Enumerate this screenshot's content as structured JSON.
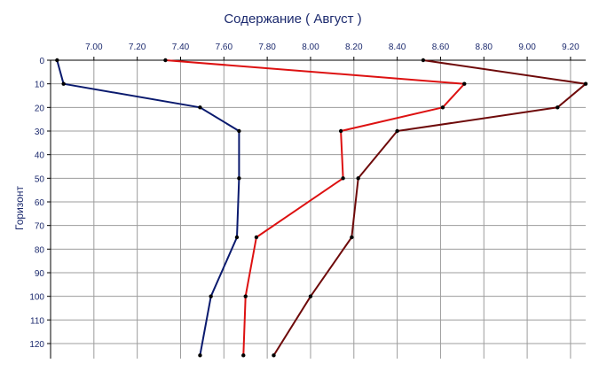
{
  "chart_data": {
    "type": "line",
    "title": "Содержание    ( Август )",
    "xlabel": "",
    "ylabel": "Горизонт",
    "xlim": [
      6.8,
      9.27
    ],
    "ylim": [
      0,
      125
    ],
    "y_inverted": true,
    "x_axis_position": "top",
    "grid": true,
    "x_ticks": [
      7.0,
      7.2,
      7.4,
      7.6,
      7.8,
      8.0,
      8.2,
      8.4,
      8.6,
      8.8,
      9.0,
      9.2
    ],
    "x_tick_labels": [
      "7.00",
      "7.20",
      "7.40",
      "7.60",
      "7.80",
      "8.00",
      "8.20",
      "8.40",
      "8.60",
      "8.80",
      "9.00",
      "9.20"
    ],
    "y_ticks": [
      0,
      10,
      20,
      30,
      40,
      50,
      60,
      70,
      80,
      90,
      100,
      110,
      120
    ],
    "y_tick_labels": [
      "0",
      "10",
      "20",
      "30",
      "40",
      "50",
      "60",
      "70",
      "80",
      "90",
      "100",
      "110",
      "120"
    ],
    "series": [
      {
        "color": "#0a1a6e",
        "points": [
          [
            6.83,
            0
          ],
          [
            6.86,
            10
          ],
          [
            7.49,
            20
          ],
          [
            7.67,
            30
          ],
          [
            7.67,
            50
          ],
          [
            7.66,
            75
          ],
          [
            7.54,
            100
          ],
          [
            7.49,
            125
          ]
        ]
      },
      {
        "color": "#dd1111",
        "points": [
          [
            7.33,
            0
          ],
          [
            8.71,
            10
          ],
          [
            8.61,
            20
          ],
          [
            8.14,
            30
          ],
          [
            8.15,
            50
          ],
          [
            7.75,
            75
          ],
          [
            7.7,
            100
          ],
          [
            7.69,
            125
          ]
        ]
      },
      {
        "color": "#6e0a0a",
        "points": [
          [
            8.52,
            0
          ],
          [
            9.27,
            10
          ],
          [
            9.14,
            20
          ],
          [
            8.4,
            30
          ],
          [
            8.22,
            50
          ],
          [
            8.19,
            75
          ],
          [
            8.0,
            100
          ],
          [
            7.83,
            125
          ]
        ]
      }
    ]
  }
}
